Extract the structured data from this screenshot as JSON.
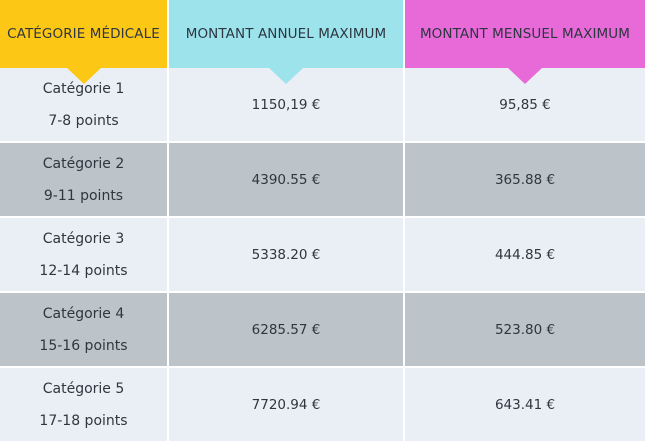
{
  "headers": {
    "category": "CATÉGORIE MÉDICALE",
    "annual": "MONTANT ANNUEL MAXIMUM",
    "monthly": "MONTANT MENSUEL MAXIMUM"
  },
  "colors": {
    "category_header": "#fdc715",
    "annual_header": "#9ce3ec",
    "monthly_header": "#e76ad8",
    "row_light": "#e9eff5",
    "row_dark": "#bcc4c9"
  },
  "rows": [
    {
      "category": "Catégorie 1",
      "points": "7-8 points",
      "annual": "1150,19 €",
      "monthly": "95,85 €"
    },
    {
      "category": "Catégorie 2",
      "points": "9-11 points",
      "annual": "4390.55 €",
      "monthly": "365.88 €"
    },
    {
      "category": "Catégorie 3",
      "points": "12-14 points",
      "annual": "5338.20 €",
      "monthly": "444.85 €"
    },
    {
      "category": "Catégorie 4",
      "points": "15-16 points",
      "annual": "6285.57 €",
      "monthly": "523.80 €"
    },
    {
      "category": "Catégorie 5",
      "points": "17-18 points",
      "annual": "7720.94 €",
      "monthly": "643.41 €"
    }
  ]
}
